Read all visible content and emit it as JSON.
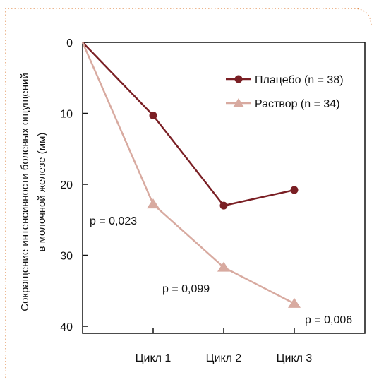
{
  "chart_data": {
    "type": "line",
    "xlabel": "",
    "ylabel": "Сокращение интенсивности болевых ощущений в молочной железе (мм)",
    "ylabel_lines": [
      "Сокращение интенсивности болевых ощущений",
      "в молочной железе (мм)"
    ],
    "x_tick_labels": [
      "Цикл 1",
      "Цикл 2",
      "Цикл 3"
    ],
    "y_ticks": [
      0,
      10,
      20,
      30,
      40
    ],
    "y_ticks_text": [
      "0",
      "10",
      "20",
      "30",
      "40"
    ],
    "ylim": [
      0,
      40
    ],
    "y_inverted": true,
    "x": [
      0,
      1,
      2,
      3
    ],
    "series": [
      {
        "name": "Плацебо (n = 38)",
        "marker": "circle",
        "color": "#7a1f24",
        "values": [
          0,
          10.3,
          23.0,
          20.8
        ]
      },
      {
        "name": "Раствор (n = 34)",
        "marker": "triangle",
        "color": "#d8aaa0",
        "values": [
          0,
          22.8,
          31.7,
          36.8
        ]
      }
    ],
    "annotations": [
      "p = 0,023",
      "p = 0,099",
      "p = 0,006"
    ],
    "legend_position": "top-right",
    "grid": false
  }
}
